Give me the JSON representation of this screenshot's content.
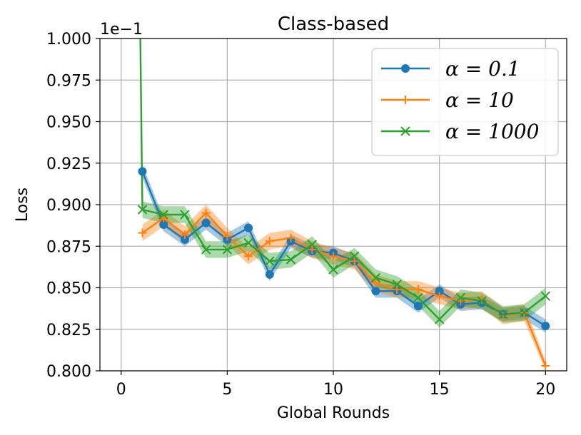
{
  "chart_data": {
    "type": "line",
    "title": "Class-based",
    "xlabel": "Global Rounds",
    "ylabel": "Loss",
    "offset_label": "1e−1",
    "xlim": [
      -1,
      21
    ],
    "ylim": [
      0.8,
      1.0
    ],
    "xticks": [
      0,
      5,
      10,
      15,
      20
    ],
    "xtick_labels": [
      "0",
      "5",
      "10",
      "15",
      "20"
    ],
    "yticks": [
      0.8,
      0.825,
      0.85,
      0.875,
      0.9,
      0.925,
      0.95,
      0.975,
      1.0
    ],
    "ytick_labels": [
      "0.800",
      "0.825",
      "0.850",
      "0.875",
      "0.900",
      "0.925",
      "0.950",
      "0.975",
      "1.000"
    ],
    "grid": true,
    "legend_position": "top-right",
    "x": [
      1,
      2,
      3,
      4,
      5,
      6,
      7,
      8,
      9,
      10,
      11,
      12,
      13,
      14,
      15,
      16,
      17,
      18,
      19,
      20
    ],
    "series": [
      {
        "name": "α = 0.1",
        "legend_label": "α = 0.1",
        "color": "#1f77b4",
        "marker": "circle",
        "values": [
          0.92,
          0.888,
          0.879,
          0.889,
          0.879,
          0.886,
          0.858,
          0.878,
          0.872,
          0.871,
          0.866,
          0.848,
          0.848,
          0.839,
          0.848,
          0.84,
          0.841,
          0.834,
          0.835,
          0.827
        ],
        "band": [
          0.004,
          0.004,
          0.004,
          0.004,
          0.004,
          0.004,
          0.004,
          0.004,
          0.004,
          0.004,
          0.004,
          0.004,
          0.004,
          0.004,
          0.004,
          0.004,
          0.004,
          0.004,
          0.004,
          0.004
        ]
      },
      {
        "name": "α = 10",
        "legend_label": "α = 10",
        "color": "#ff7f0e",
        "marker": "plus",
        "values": [
          0.883,
          0.892,
          0.882,
          0.895,
          0.881,
          0.869,
          0.878,
          0.88,
          0.873,
          0.869,
          0.866,
          0.853,
          0.849,
          0.849,
          0.845,
          0.842,
          0.843,
          0.833,
          0.835,
          0.803
        ],
        "band": [
          0.005,
          0.005,
          0.005,
          0.005,
          0.005,
          0.005,
          0.005,
          0.005,
          0.005,
          0.005,
          0.005,
          0.005,
          0.005,
          0.005,
          0.005,
          0.005,
          0.005,
          0.005,
          0.005,
          0.003
        ]
      },
      {
        "name": "α = 1000",
        "legend_label": "α = 1000",
        "color": "#2ca02c",
        "marker": "x",
        "start_point": {
          "x": 0.9,
          "y": 1.0
        },
        "values": [
          0.897,
          0.894,
          0.894,
          0.873,
          0.873,
          0.877,
          0.866,
          0.867,
          0.876,
          0.861,
          0.869,
          0.856,
          0.852,
          0.844,
          0.831,
          0.844,
          0.842,
          0.834,
          0.835,
          0.845
        ],
        "band": [
          0.005,
          0.005,
          0.005,
          0.005,
          0.005,
          0.005,
          0.005,
          0.005,
          0.005,
          0.005,
          0.005,
          0.005,
          0.005,
          0.005,
          0.005,
          0.005,
          0.005,
          0.005,
          0.005,
          0.005
        ]
      }
    ]
  }
}
